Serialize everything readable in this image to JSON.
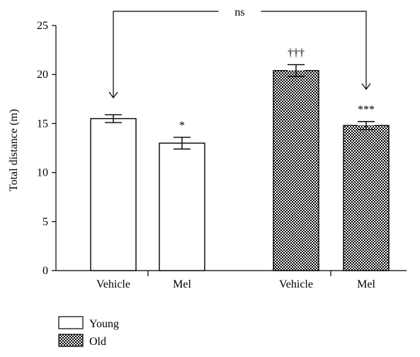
{
  "chart_data": {
    "type": "bar",
    "title": "",
    "xlabel": "",
    "ylabel": "Total distance (m)",
    "ylim": [
      0,
      25
    ],
    "yticks": [
      0,
      5,
      10,
      15,
      20,
      25
    ],
    "grid": false,
    "legend_position": "bottom-left",
    "categories": [
      "Vehicle",
      "Mel",
      "Vehicle",
      "Mel"
    ],
    "bars": [
      {
        "category": "Vehicle",
        "group": "Young",
        "value": 15.5,
        "error": 0.4,
        "annotation": ""
      },
      {
        "category": "Mel",
        "group": "Young",
        "value": 13.0,
        "error": 0.6,
        "annotation": "*"
      },
      {
        "category": "Vehicle",
        "group": "Old",
        "value": 20.4,
        "error": 0.6,
        "annotation": "†††"
      },
      {
        "category": "Mel",
        "group": "Old",
        "value": 14.8,
        "error": 0.4,
        "annotation": "***"
      }
    ],
    "legend": [
      {
        "name": "Young",
        "pattern": "open"
      },
      {
        "name": "Old",
        "pattern": "checkered"
      }
    ],
    "comparison": {
      "label": "ns",
      "from_bar": 0,
      "to_bar": 3
    },
    "colors": {
      "bar_stroke": "#000000",
      "open_fill": "#ffffff",
      "checker_dark": "#000000",
      "checker_light": "#ffffff"
    }
  }
}
